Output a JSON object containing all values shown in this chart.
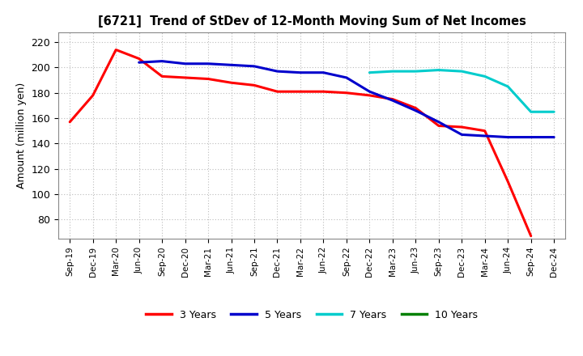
{
  "title": "[6721]  Trend of StDev of 12-Month Moving Sum of Net Incomes",
  "ylabel": "Amount (million yen)",
  "ylim": [
    65,
    228
  ],
  "yticks": [
    80,
    100,
    120,
    140,
    160,
    180,
    200,
    220
  ],
  "background_color": "#ffffff",
  "grid_color": "#bbbbbb",
  "series": {
    "3 Years": {
      "color": "#ff0000",
      "x": [
        "Sep-19",
        "Dec-19",
        "Mar-20",
        "Jun-20",
        "Sep-20",
        "Dec-20",
        "Mar-21",
        "Jun-21",
        "Sep-21",
        "Dec-21",
        "Mar-22",
        "Jun-22",
        "Sep-22",
        "Dec-22",
        "Mar-23",
        "Jun-23",
        "Sep-23",
        "Dec-23",
        "Mar-24",
        "Jun-24",
        "Sep-24"
      ],
      "y": [
        157,
        178,
        214,
        207,
        193,
        192,
        191,
        188,
        186,
        181,
        181,
        181,
        180,
        178,
        175,
        168,
        154,
        153,
        150,
        110,
        67
      ]
    },
    "5 Years": {
      "color": "#0000cc",
      "x": [
        "Jun-20",
        "Sep-20",
        "Dec-20",
        "Mar-21",
        "Jun-21",
        "Sep-21",
        "Dec-21",
        "Mar-22",
        "Jun-22",
        "Sep-22",
        "Dec-22",
        "Mar-23",
        "Jun-23",
        "Sep-23",
        "Dec-23",
        "Mar-24",
        "Jun-24",
        "Sep-24",
        "Dec-24"
      ],
      "y": [
        204,
        205,
        203,
        203,
        202,
        201,
        197,
        196,
        196,
        192,
        181,
        174,
        166,
        157,
        147,
        146,
        145,
        145,
        145
      ]
    },
    "7 Years": {
      "color": "#00cccc",
      "x": [
        "Dec-22",
        "Mar-23",
        "Jun-23",
        "Sep-23",
        "Dec-23",
        "Mar-24",
        "Jun-24",
        "Sep-24",
        "Dec-24"
      ],
      "y": [
        196,
        197,
        197,
        198,
        197,
        193,
        185,
        165,
        165
      ]
    },
    "10 Years": {
      "color": "#008000",
      "x": [],
      "y": []
    }
  },
  "x_labels": [
    "Sep-19",
    "Dec-19",
    "Mar-20",
    "Jun-20",
    "Sep-20",
    "Dec-20",
    "Mar-21",
    "Jun-21",
    "Sep-21",
    "Dec-21",
    "Mar-22",
    "Jun-22",
    "Sep-22",
    "Dec-22",
    "Mar-23",
    "Jun-23",
    "Sep-23",
    "Dec-23",
    "Mar-24",
    "Jun-24",
    "Sep-24",
    "Dec-24"
  ],
  "legend_labels": [
    "3 Years",
    "5 Years",
    "7 Years",
    "10 Years"
  ],
  "legend_colors": [
    "#ff0000",
    "#0000cc",
    "#00cccc",
    "#008000"
  ]
}
